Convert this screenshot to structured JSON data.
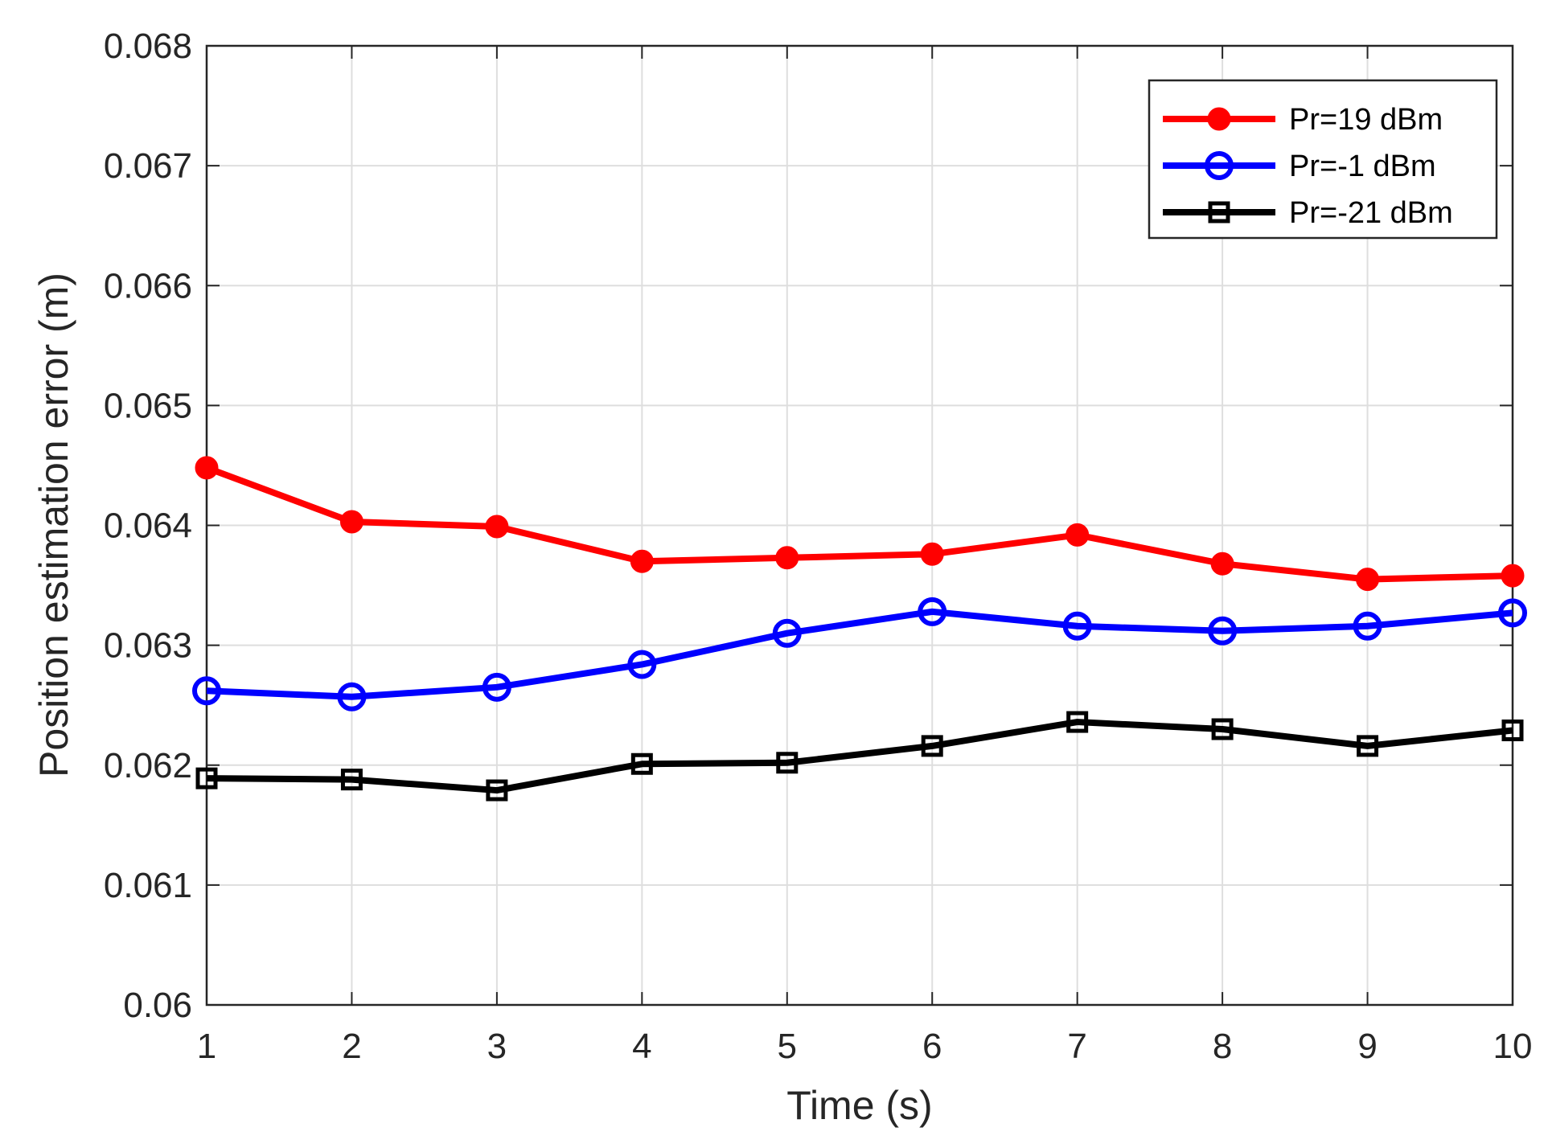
{
  "chart_data": {
    "type": "line",
    "title": "",
    "xlabel": "Time (s)",
    "ylabel": "Position estimation error (m)",
    "xlim": [
      1,
      10
    ],
    "ylim": [
      0.06,
      0.068
    ],
    "x": [
      1,
      2,
      3,
      4,
      5,
      6,
      7,
      8,
      9,
      10
    ],
    "xticks": [
      "1",
      "2",
      "3",
      "4",
      "5",
      "6",
      "7",
      "8",
      "9",
      "10"
    ],
    "yticks": [
      "0.06",
      "0.061",
      "0.062",
      "0.063",
      "0.064",
      "0.065",
      "0.066",
      "0.067",
      "0.068"
    ],
    "ytick_values": [
      0.06,
      0.061,
      0.062,
      0.063,
      0.064,
      0.065,
      0.066,
      0.067,
      0.068
    ],
    "grid": true,
    "legend_position": "top-right",
    "series": [
      {
        "name": "Pr=19 dBm",
        "color": "#ff0000",
        "marker": "filled-circle",
        "values": [
          0.06448,
          0.06403,
          0.06399,
          0.0637,
          0.06373,
          0.06376,
          0.06392,
          0.06368,
          0.06355,
          0.06358
        ]
      },
      {
        "name": "Pr=-1 dBm",
        "color": "#0000ff",
        "marker": "open-circle",
        "values": [
          0.06262,
          0.06257,
          0.06265,
          0.06284,
          0.0631,
          0.06328,
          0.06316,
          0.06312,
          0.06316,
          0.06327
        ]
      },
      {
        "name": "Pr=-21 dBm",
        "color": "#000000",
        "marker": "open-square",
        "values": [
          0.06189,
          0.06188,
          0.06179,
          0.06201,
          0.06202,
          0.06216,
          0.06236,
          0.0623,
          0.06216,
          0.06229
        ]
      }
    ]
  }
}
